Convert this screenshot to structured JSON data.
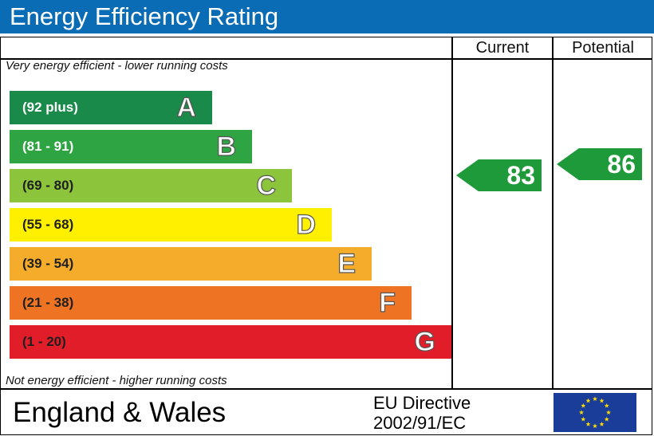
{
  "title": "Energy Efficiency Rating",
  "columns": {
    "current": "Current",
    "potential": "Potential"
  },
  "top_note": "Very energy efficient - lower running costs",
  "bottom_note": "Not energy efficient - higher running costs",
  "chart_data": {
    "type": "bar",
    "bands": [
      {
        "range": "(92 plus)",
        "letter": "A",
        "color": "#1a8a4a",
        "text_color": "#ffffff"
      },
      {
        "range": "(81 - 91)",
        "letter": "B",
        "color": "#2ea443",
        "text_color": "#ffffff"
      },
      {
        "range": "(69 - 80)",
        "letter": "C",
        "color": "#8cc43c",
        "text_color": "#1f1f1f"
      },
      {
        "range": "(55 - 68)",
        "letter": "D",
        "color": "#fff000",
        "text_color": "#1f1f1f"
      },
      {
        "range": "(39 - 54)",
        "letter": "E",
        "color": "#f5ac2b",
        "text_color": "#1f1f1f"
      },
      {
        "range": "(21 - 38)",
        "letter": "F",
        "color": "#ee7424",
        "text_color": "#1f1f1f"
      },
      {
        "range": "(1 - 20)",
        "letter": "G",
        "color": "#e21d2a",
        "text_color": "#1f1f1f"
      }
    ],
    "current": {
      "value": "83",
      "band": "B"
    },
    "potential": {
      "value": "86",
      "band": "B"
    }
  },
  "footer": {
    "region": "England & Wales",
    "directive_line1": "EU Directive",
    "directive_line2": "2002/91/EC",
    "flag_icon": "eu-flag-icon"
  }
}
